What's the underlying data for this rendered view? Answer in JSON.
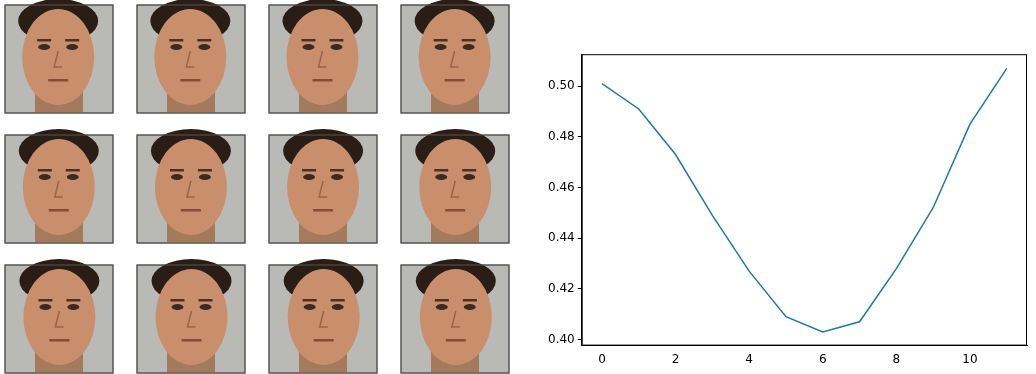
{
  "chart_data": {
    "type": "line",
    "x": [
      0,
      1,
      2,
      3,
      4,
      5,
      6,
      7,
      8,
      9,
      10,
      11
    ],
    "values": [
      0.501,
      0.491,
      0.473,
      0.449,
      0.427,
      0.409,
      0.403,
      0.407,
      0.428,
      0.452,
      0.485,
      0.507
    ],
    "color": "#1f77b4",
    "xlim": [
      -0.55,
      11.55
    ],
    "xticks": [
      0,
      2,
      4,
      6,
      8,
      10
    ],
    "ylim": [
      0.3976,
      0.5126
    ],
    "yticks": [
      {
        "value": 0.4,
        "label": "0.40"
      },
      0.42,
      0.44,
      0.46,
      0.48,
      {
        "value": 0.5,
        "label": "0.50"
      }
    ],
    "grid": false
  }
}
